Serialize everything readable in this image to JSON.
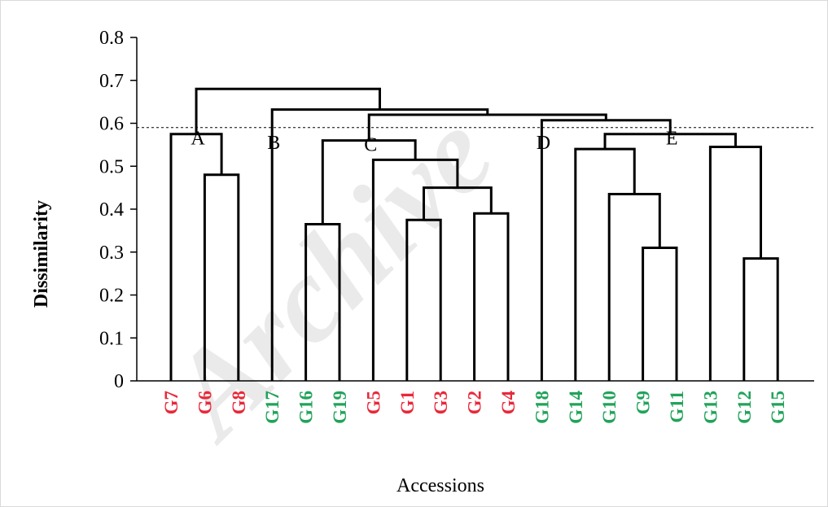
{
  "chart_data": {
    "type": "dendrogram",
    "xlabel": "Accessions",
    "ylabel": "Dissimilarity",
    "ylim": [
      0,
      0.8
    ],
    "yticks": [
      "0",
      "0.1",
      "0.2",
      "0.3",
      "0.4",
      "0.5",
      "0.6",
      "0.7",
      "0.8"
    ],
    "cut_line": 0.59,
    "leaves": [
      {
        "label": "G7",
        "color": "#e8293a"
      },
      {
        "label": "G6",
        "color": "#e8293a"
      },
      {
        "label": "G8",
        "color": "#e8293a"
      },
      {
        "label": "G17",
        "color": "#21a35a"
      },
      {
        "label": "G16",
        "color": "#21a35a"
      },
      {
        "label": "G19",
        "color": "#21a35a"
      },
      {
        "label": "G5",
        "color": "#e8293a"
      },
      {
        "label": "G1",
        "color": "#e8293a"
      },
      {
        "label": "G3",
        "color": "#e8293a"
      },
      {
        "label": "G2",
        "color": "#e8293a"
      },
      {
        "label": "G4",
        "color": "#e8293a"
      },
      {
        "label": "G18",
        "color": "#21a35a"
      },
      {
        "label": "G14",
        "color": "#21a35a"
      },
      {
        "label": "G10",
        "color": "#21a35a"
      },
      {
        "label": "G9",
        "color": "#21a35a"
      },
      {
        "label": "G11",
        "color": "#21a35a"
      },
      {
        "label": "G13",
        "color": "#21a35a"
      },
      {
        "label": "G12",
        "color": "#21a35a"
      },
      {
        "label": "G15",
        "color": "#21a35a"
      }
    ],
    "merges": [
      {
        "id": "m1",
        "left": "G6",
        "right": "G8",
        "height": 0.48
      },
      {
        "id": "m2",
        "left": "G7",
        "right": "m1",
        "height": 0.575
      },
      {
        "id": "m3",
        "left": "G16",
        "right": "G19",
        "height": 0.365
      },
      {
        "id": "m4",
        "left": "G1",
        "right": "G3",
        "height": 0.375
      },
      {
        "id": "m5",
        "left": "G2",
        "right": "G4",
        "height": 0.39
      },
      {
        "id": "m6",
        "left": "m4",
        "right": "m5",
        "height": 0.45
      },
      {
        "id": "m7",
        "left": "G5",
        "right": "m6",
        "height": 0.515
      },
      {
        "id": "m8",
        "left": "m3",
        "right": "m7",
        "height": 0.56
      },
      {
        "id": "m9",
        "left": "G9",
        "right": "G11",
        "height": 0.31
      },
      {
        "id": "m10",
        "left": "G10",
        "right": "m9",
        "height": 0.435
      },
      {
        "id": "m11",
        "left": "G14",
        "right": "m10",
        "height": 0.54
      },
      {
        "id": "m12",
        "left": "G12",
        "right": "G15",
        "height": 0.285
      },
      {
        "id": "m13",
        "left": "G13",
        "right": "m12",
        "height": 0.545
      },
      {
        "id": "m14",
        "left": "m11",
        "right": "m13",
        "height": 0.575
      },
      {
        "id": "m15",
        "left": "G18",
        "right": "m14",
        "height": 0.607
      },
      {
        "id": "m16",
        "left": "m8",
        "right": "m15",
        "height": 0.62
      },
      {
        "id": "m17",
        "left": "G17",
        "right": "m16",
        "height": 0.632
      },
      {
        "id": "m18",
        "left": "m2",
        "right": "m17",
        "height": 0.68
      }
    ],
    "cluster_labels": [
      {
        "label": "A",
        "at": "m2"
      },
      {
        "label": "B",
        "at": "G17"
      },
      {
        "label": "C",
        "at": "m8"
      },
      {
        "label": "D",
        "at": "G18"
      },
      {
        "label": "E",
        "at": "m14"
      }
    ]
  },
  "watermark": "Archive"
}
